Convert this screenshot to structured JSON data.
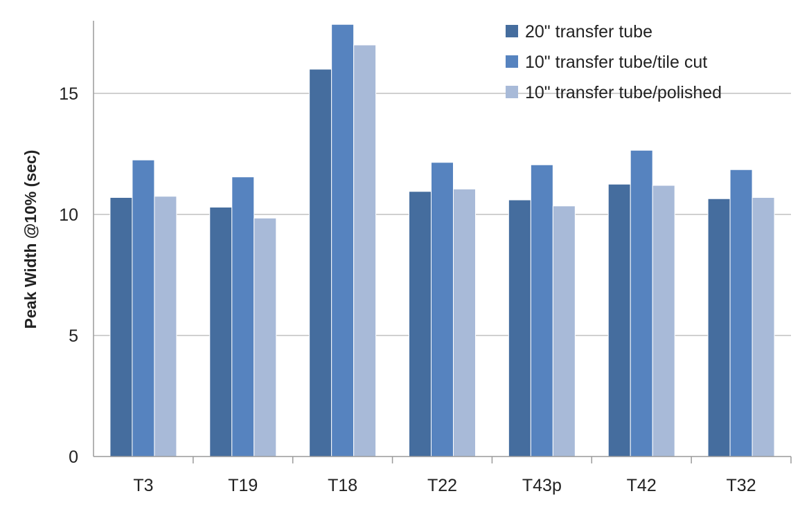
{
  "chart_data": {
    "type": "bar",
    "categories": [
      "T3",
      "T19",
      "T18",
      "T22",
      "T43p",
      "T42",
      "T32"
    ],
    "series": [
      {
        "name": "20\" transfer tube",
        "values": [
          10.7,
          10.3,
          16.0,
          10.95,
          10.6,
          11.25,
          10.65
        ],
        "color": "#456d9e"
      },
      {
        "name": "10\" transfer tube/tile cut",
        "values": [
          12.25,
          11.55,
          17.85,
          12.15,
          12.05,
          12.65,
          11.85
        ],
        "color": "#5683bf"
      },
      {
        "name": "10\" transfer tube/polished",
        "values": [
          10.75,
          9.85,
          17.0,
          11.05,
          10.35,
          11.2,
          10.7
        ],
        "color": "#a8bad8"
      }
    ],
    "title": "",
    "xlabel": "",
    "ylabel": "Peak Width @10% (sec)",
    "ylim": [
      0,
      18
    ],
    "yticks": [
      0,
      5,
      10,
      15
    ],
    "grid": true,
    "legend_position": "top-right"
  }
}
